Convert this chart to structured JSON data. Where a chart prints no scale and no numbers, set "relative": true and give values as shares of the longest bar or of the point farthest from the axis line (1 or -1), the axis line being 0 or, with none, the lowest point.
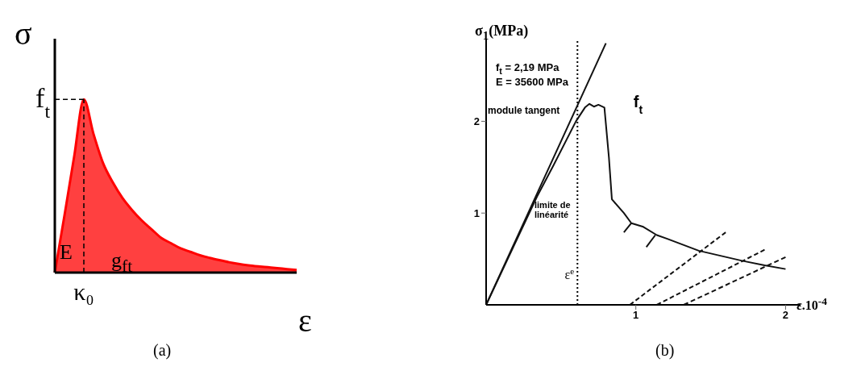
{
  "chart_data": [
    {
      "type": "area",
      "title": "(a)",
      "xlabel": "ε",
      "ylabel": "σ",
      "relative": true,
      "color": "#ff4040",
      "categories": [
        null,
        null,
        null,
        null,
        null,
        null,
        null,
        null,
        null,
        null,
        null,
        null,
        null,
        null,
        null,
        null,
        null,
        null,
        null,
        null,
        null,
        null,
        null,
        null,
        null,
        null
      ],
      "values": [
        0,
        0.33,
        0.67,
        1,
        0.8,
        0.63,
        0.52,
        0.43,
        0.36,
        0.3,
        0.25,
        0.2,
        0.17,
        0.14,
        0.12,
        0.1,
        0.085,
        0.072,
        0.06,
        0.05,
        0.042,
        0.036,
        0.031,
        0.026,
        0.02,
        0.015
      ],
      "ref_lines": [
        {
          "axis": "y",
          "value": 1,
          "label": "f$_{t}$",
          "line_style": "dashed"
        },
        {
          "axis": "x",
          "label": "κ₀",
          "line_style": "dashed"
        }
      ],
      "annotations": [
        "E",
        "g$_{ft}$"
      ]
    },
    {
      "type": "line",
      "title": "(b)",
      "xlabel": "ε.10$^{-4}$",
      "ylabel": "σ$_{1}$(MPa)",
      "xlim": [
        0,
        2.1
      ],
      "xticks": [
        1,
        2
      ],
      "ylim": [
        0,
        2.9
      ],
      "yticks": [
        1,
        2
      ],
      "series": [
        {
          "color": "#111111",
          "x": [
            0,
            0.8
          ],
          "values": [
            0,
            2.85
          ]
        },
        {
          "color": "#111111",
          "x": [
            0,
            0.34,
            0.45,
            0.6,
            0.66,
            0.69,
            0.72,
            0.75,
            0.79,
            0.82,
            0.84,
            0.92,
            0.97,
            1.05,
            1.14,
            1.21,
            1.42,
            1.71,
            1.86,
            2.0
          ],
          "values": [
            0,
            1.18,
            1.52,
            2.0,
            2.15,
            2.19,
            2.16,
            2.18,
            2.15,
            1.61,
            1.15,
            1.0,
            0.89,
            0.85,
            0.76,
            0.72,
            0.59,
            0.48,
            0.43,
            0.39
          ]
        },
        {
          "color": "#111111",
          "x": [
            0.96,
            1.6
          ],
          "values": [
            0,
            0.79
          ],
          "line_style": "dashed"
        },
        {
          "color": "#111111",
          "x": [
            1.14,
            1.86
          ],
          "values": [
            0,
            0.6
          ],
          "line_style": "dashed"
        },
        {
          "color": "#111111",
          "x": [
            1.32,
            2.0
          ],
          "values": [
            0,
            0.52
          ],
          "line_style": "dashed"
        },
        {
          "color": "#111111",
          "x": [
            0.92,
            0.97
          ],
          "values": [
            0.79,
            0.89
          ]
        },
        {
          "color": "#111111",
          "x": [
            1.07,
            1.13
          ],
          "values": [
            0.63,
            0.76
          ]
        }
      ],
      "ref_lines": [
        {
          "axis": "x",
          "value": 0.61,
          "label": "ε$^{e}$",
          "line_style": "dotted"
        }
      ],
      "annotations": [
        "f$_{t}$ = 2,19 MPa",
        "E = 35600 MPa",
        "module tangent",
        "limite de linéarité",
        {
          "text": "f$_{t}$",
          "x": 0.79,
          "y": 2.19
        }
      ]
    }
  ]
}
